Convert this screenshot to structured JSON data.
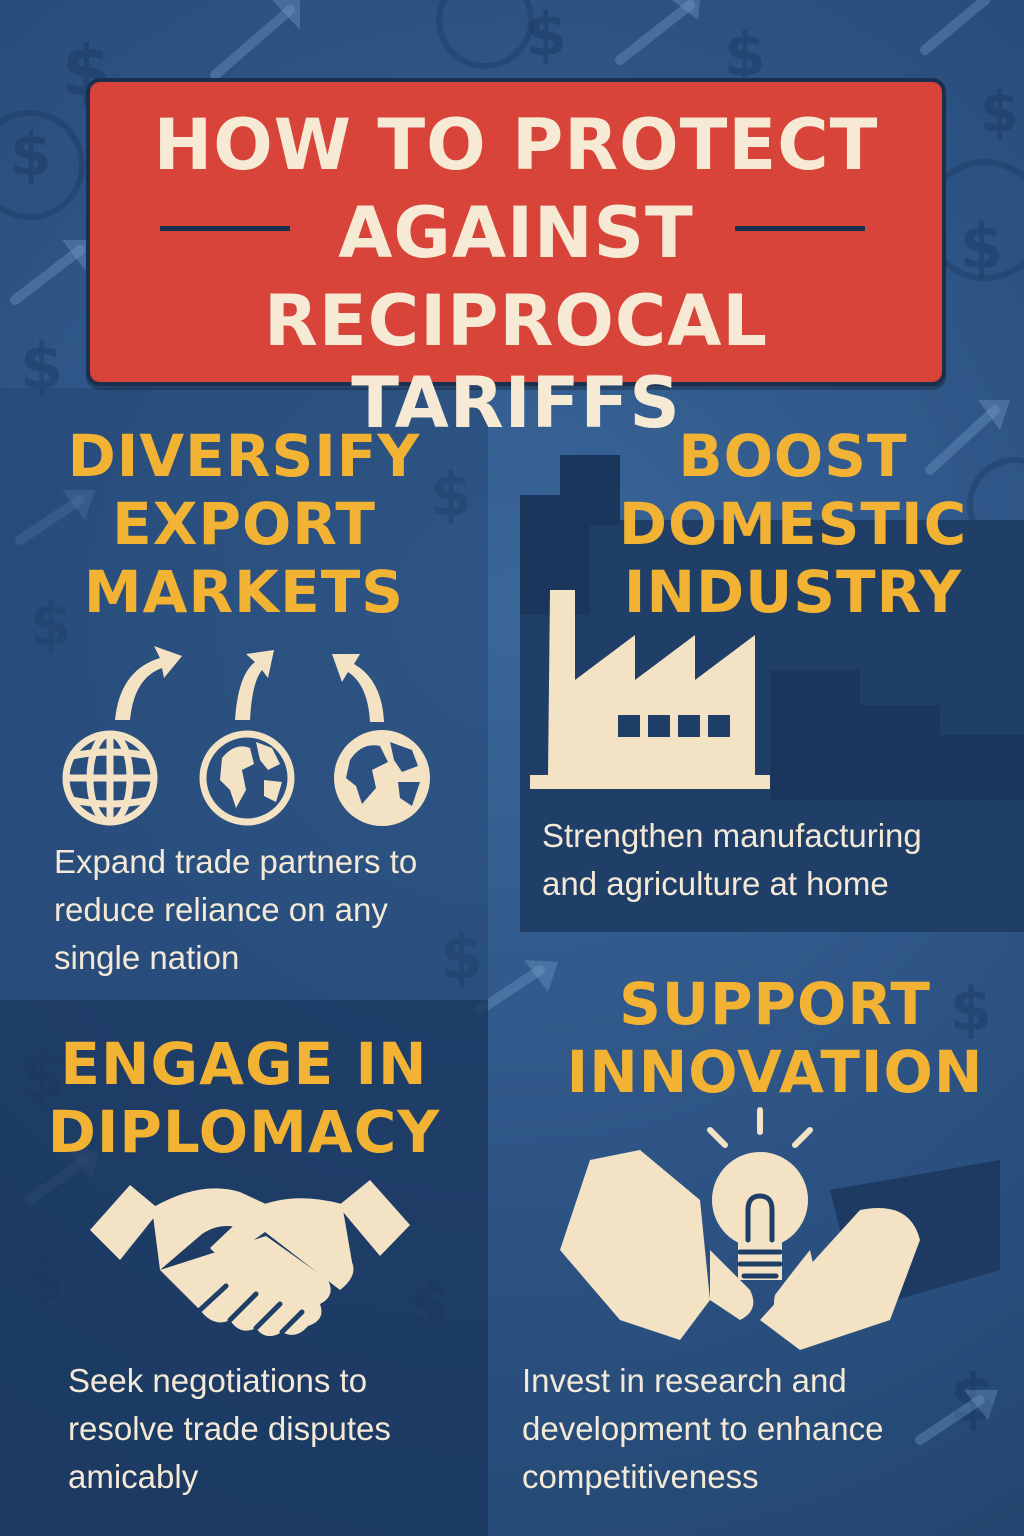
{
  "title": {
    "line1": "HOW TO PROTECT",
    "line2": "AGAINST",
    "line3": "RECIPROCAL TARIFFS"
  },
  "sections": [
    {
      "heading_lines": [
        "DIVERSIFY",
        "EXPORT",
        "MARKETS"
      ],
      "description_lines": [
        "Expand trade partners to",
        "reduce reliance on any",
        "single nation"
      ],
      "icon": "globes-with-arrows-icon"
    },
    {
      "heading_lines": [
        "BOOST",
        "DOMESTIC",
        "INDUSTRY"
      ],
      "description_lines": [
        "Strengthen manufacturing",
        "and agriculture at home"
      ],
      "icon": "factory-icon"
    },
    {
      "heading_lines": [
        "ENGAGE IN",
        "DIPLOMACY"
      ],
      "description_lines": [
        "Seek negotiations to",
        "resolve trade disputes",
        "amicably"
      ],
      "icon": "handshake-icon"
    },
    {
      "heading_lines": [
        "SUPPORT",
        "INNOVATION"
      ],
      "description_lines": [
        "Invest in research and",
        "development to enhance",
        "competitiveness"
      ],
      "icon": "lightbulb-in-hands-icon"
    }
  ],
  "colors": {
    "background": "#2f5a8c",
    "title_box": "#d8433a",
    "heading": "#f2b233",
    "text": "#f3e9d6",
    "dark_panel": "#1f3e68"
  }
}
